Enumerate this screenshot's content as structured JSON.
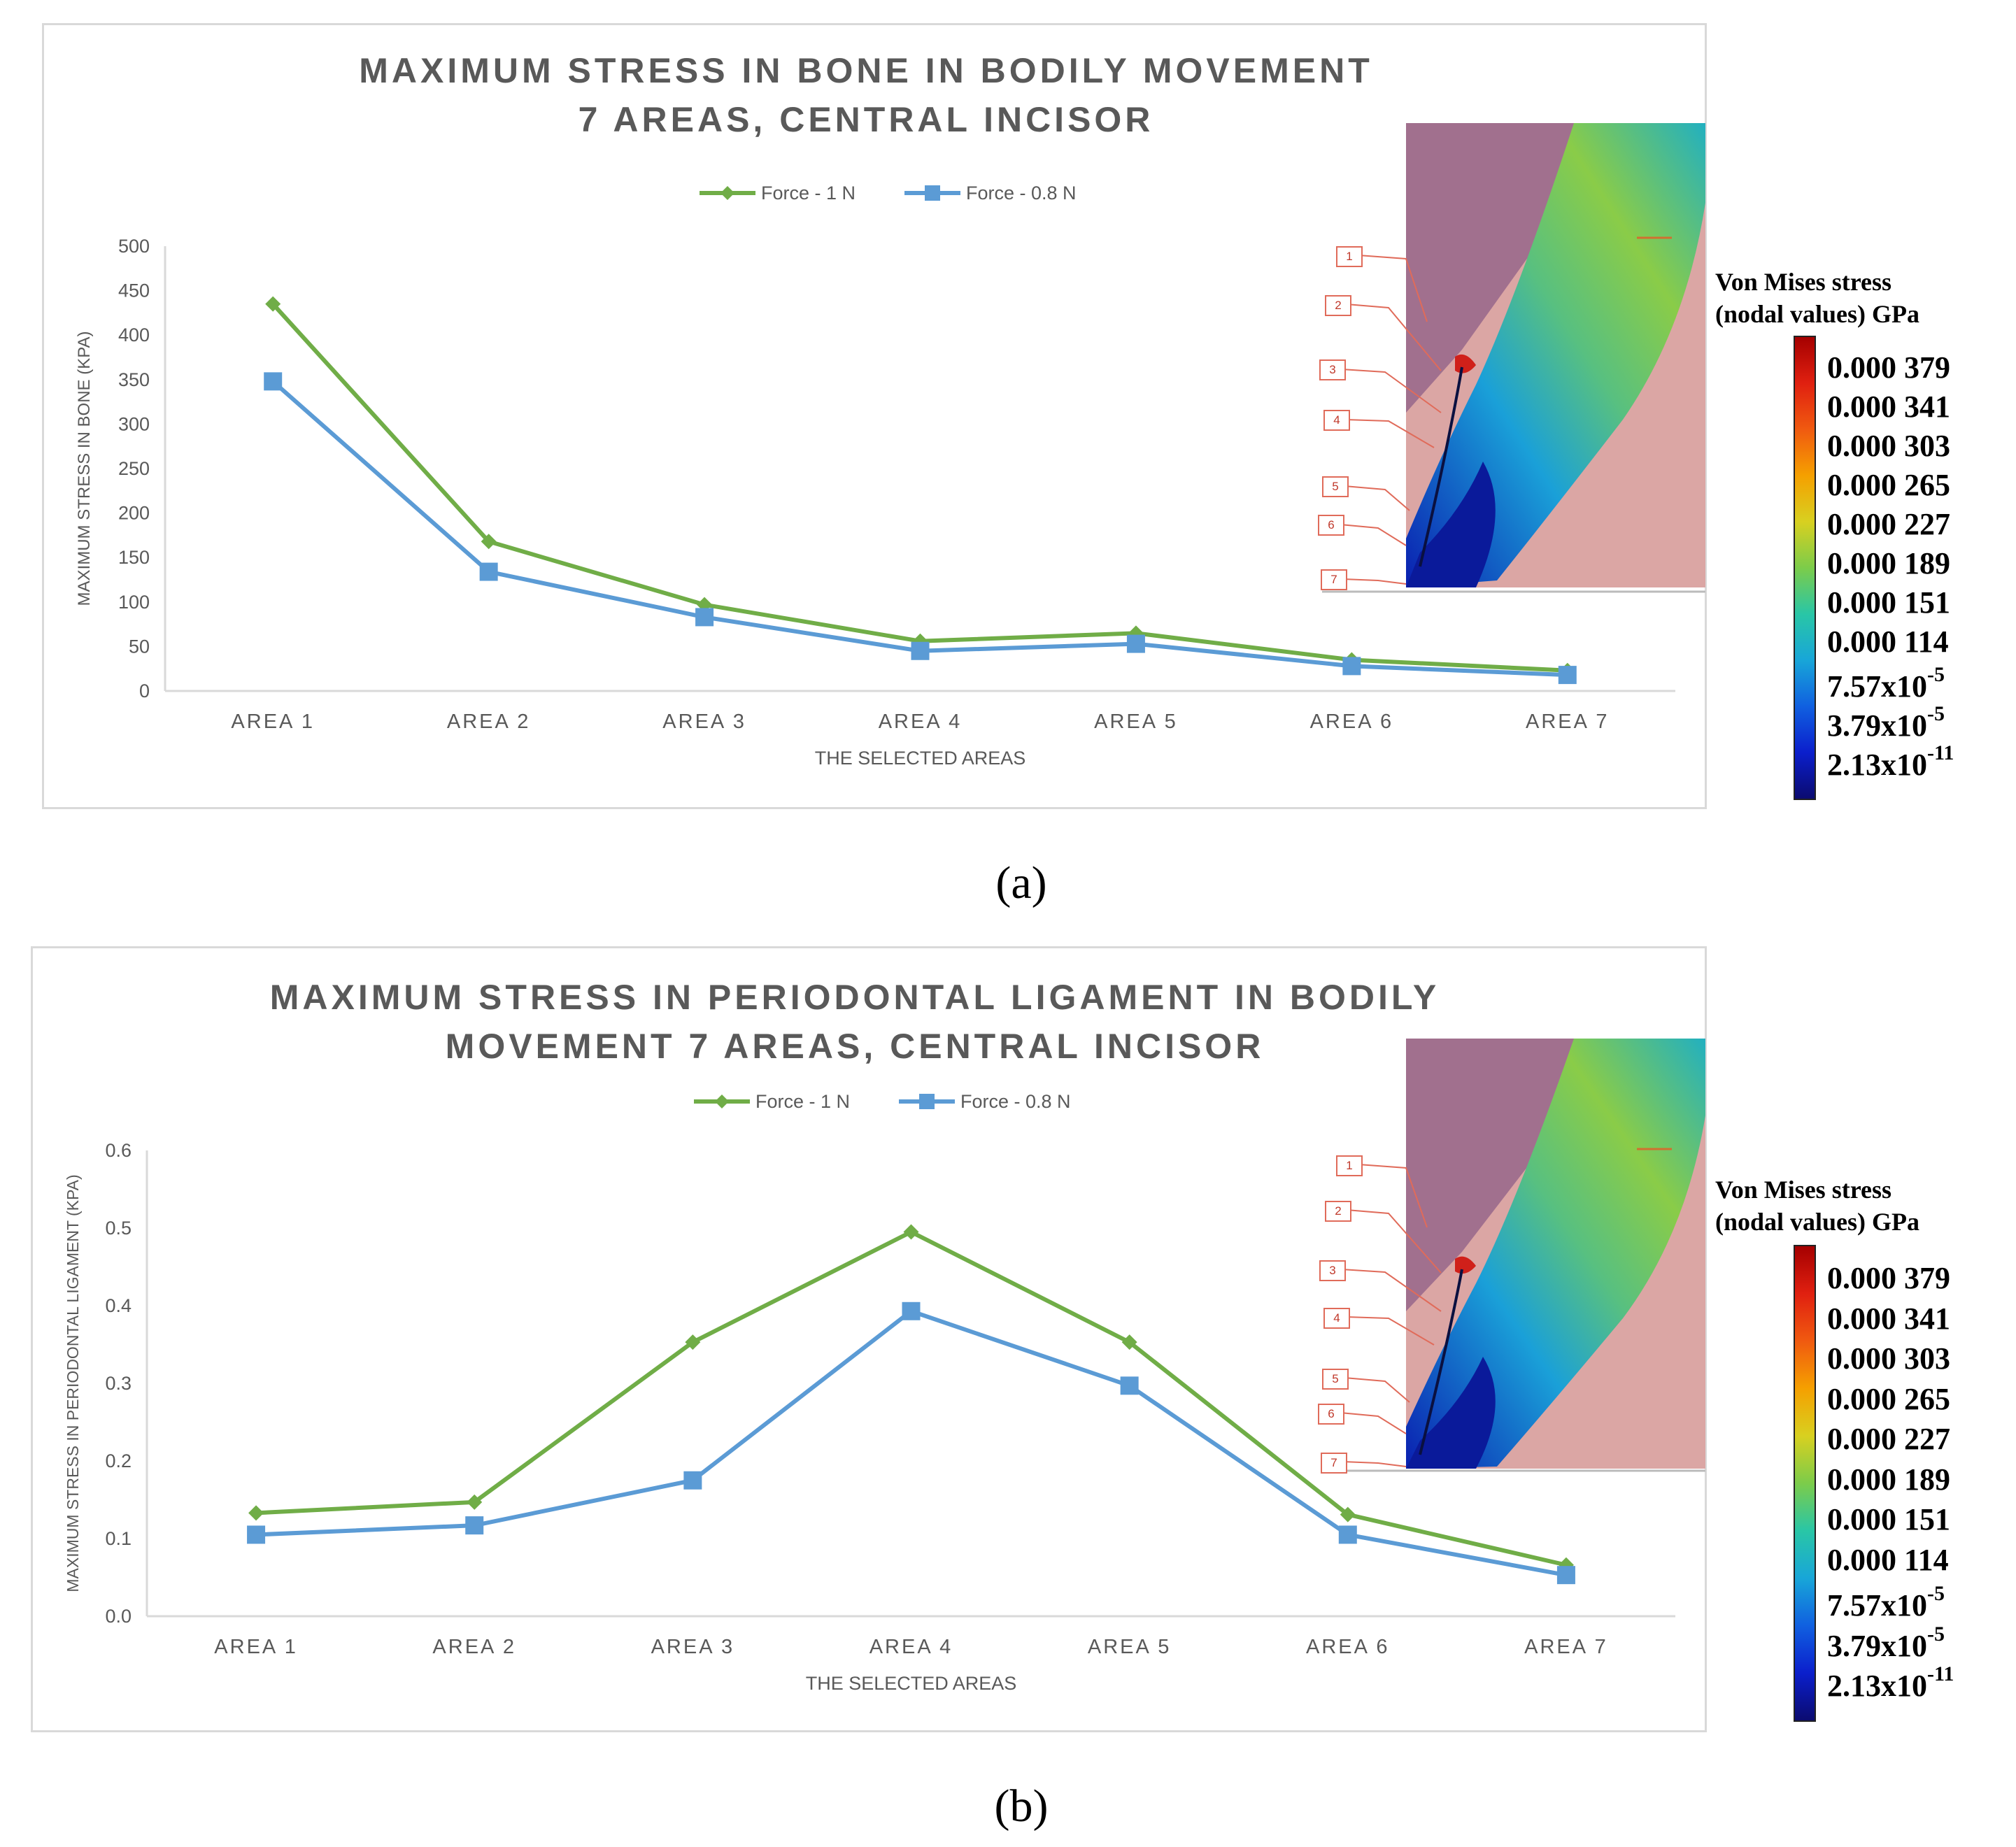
{
  "captions": {
    "a": "(a)",
    "b": "(b)"
  },
  "colors": {
    "force1": "#70ad47",
    "force08": "#5b9bd5",
    "axis": "#d9d9d9",
    "text": "#595959"
  },
  "inset": {
    "callouts": [
      "1",
      "2",
      "3",
      "4",
      "5",
      "6",
      "7"
    ],
    "colorbar": {
      "title_line1": "Von Mises stress",
      "title_line2": "(nodal values)  GPa",
      "labels": [
        {
          "base": "0.000 379",
          "exp": ""
        },
        {
          "base": "0.000 341",
          "exp": ""
        },
        {
          "base": "0.000 303",
          "exp": ""
        },
        {
          "base": "0.000 265",
          "exp": ""
        },
        {
          "base": "0.000 227",
          "exp": ""
        },
        {
          "base": "0.000 189",
          "exp": ""
        },
        {
          "base": "0.000 151",
          "exp": ""
        },
        {
          "base": "0.000 114",
          "exp": ""
        },
        {
          "base": "7.57x10",
          "exp": "-5"
        },
        {
          "base": "3.79x10",
          "exp": "-5"
        },
        {
          "base": "2.13x10",
          "exp": "-11"
        }
      ]
    }
  },
  "chart_data": [
    {
      "type": "line",
      "title": "MAXIMUM STRESS IN BONE IN BODILY MOVEMENT 7 AREAS, CENTRAL INCISOR",
      "title_lines": [
        "MAXIMUM STRESS IN BONE IN BODILY MOVEMENT",
        "7 AREAS, CENTRAL INCISOR"
      ],
      "xlabel": "THE SELECTED AREAS",
      "ylabel": "MAXIMUM STRESS IN BONE  (KPA)",
      "categories": [
        "AREA 1",
        "AREA 2",
        "AREA 3",
        "AREA 4",
        "AREA 5",
        "AREA 6",
        "AREA 7"
      ],
      "ylim": [
        0,
        500
      ],
      "yticks": [
        0,
        50,
        100,
        150,
        200,
        250,
        300,
        350,
        400,
        450,
        500
      ],
      "ytick_labels": [
        "0",
        "50",
        "100",
        "150",
        "200",
        "250",
        "300",
        "350",
        "400",
        "450",
        "500"
      ],
      "legend": "top-center",
      "series": [
        {
          "name": "Force - 1 N",
          "marker": "diamond",
          "values": [
            435,
            168,
            97,
            56,
            65,
            35,
            23
          ]
        },
        {
          "name": "Force - 0.8 N",
          "marker": "square",
          "values": [
            348,
            134,
            83,
            45,
            53,
            28,
            18
          ]
        }
      ]
    },
    {
      "type": "line",
      "title": "MAXIMUM STRESS IN PERIODONTAL LIGAMENT IN BODILY MOVEMENT 7 AREAS, CENTRAL INCISOR",
      "title_lines": [
        "MAXIMUM STRESS IN PERIODONTAL LIGAMENT IN BODILY",
        "MOVEMENT 7 AREAS, CENTRAL INCISOR"
      ],
      "xlabel": "THE SELECTED AREAS",
      "ylabel": "MAXIMUM STRESS IN PERIODONTAL LIGAMENT (KPA)",
      "categories": [
        "AREA 1",
        "AREA 2",
        "AREA 3",
        "AREA 4",
        "AREA 5",
        "AREA 6",
        "AREA 7"
      ],
      "ylim": [
        0,
        0.6
      ],
      "yticks": [
        0,
        0.1,
        0.2,
        0.3,
        0.4,
        0.5,
        0.6
      ],
      "ytick_labels": [
        "0.0",
        "0.1",
        "0.2",
        "0.3",
        "0.4",
        "0.5",
        "0.6"
      ],
      "legend": "top-center",
      "series": [
        {
          "name": "Force - 1 N",
          "marker": "diamond",
          "values": [
            0.133,
            0.147,
            0.353,
            0.495,
            0.353,
            0.131,
            0.066
          ]
        },
        {
          "name": "Force - 0.8 N",
          "marker": "square",
          "values": [
            0.105,
            0.117,
            0.175,
            0.393,
            0.297,
            0.105,
            0.053
          ]
        }
      ]
    }
  ]
}
